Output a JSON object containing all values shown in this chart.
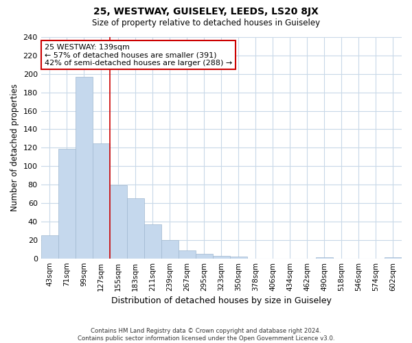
{
  "title": "25, WESTWAY, GUISELEY, LEEDS, LS20 8JX",
  "subtitle": "Size of property relative to detached houses in Guiseley",
  "xlabel": "Distribution of detached houses by size in Guiseley",
  "ylabel": "Number of detached properties",
  "bar_labels": [
    "43sqm",
    "71sqm",
    "99sqm",
    "127sqm",
    "155sqm",
    "183sqm",
    "211sqm",
    "239sqm",
    "267sqm",
    "295sqm",
    "323sqm",
    "350sqm",
    "378sqm",
    "406sqm",
    "434sqm",
    "462sqm",
    "490sqm",
    "518sqm",
    "546sqm",
    "574sqm",
    "602sqm"
  ],
  "bar_values": [
    25,
    119,
    197,
    125,
    79,
    65,
    37,
    20,
    9,
    5,
    3,
    2,
    0,
    0,
    0,
    0,
    1,
    0,
    0,
    0,
    1
  ],
  "bar_color": "#c5d8ed",
  "bar_edge_color": "#a0b8d0",
  "grid_color": "#c8d8e8",
  "background_color": "#ffffff",
  "annotation_line1": "25 WESTWAY: 139sqm",
  "annotation_line2": "← 57% of detached houses are smaller (391)",
  "annotation_line3": "42% of semi-detached houses are larger (288) →",
  "vline_x_index": 3.5,
  "vline_color": "#cc0000",
  "annotation_box_color": "#ffffff",
  "annotation_box_edge": "#cc0000",
  "ylim": [
    0,
    240
  ],
  "yticks": [
    0,
    20,
    40,
    60,
    80,
    100,
    120,
    140,
    160,
    180,
    200,
    220,
    240
  ],
  "footer_line1": "Contains HM Land Registry data © Crown copyright and database right 2024.",
  "footer_line2": "Contains public sector information licensed under the Open Government Licence v3.0."
}
